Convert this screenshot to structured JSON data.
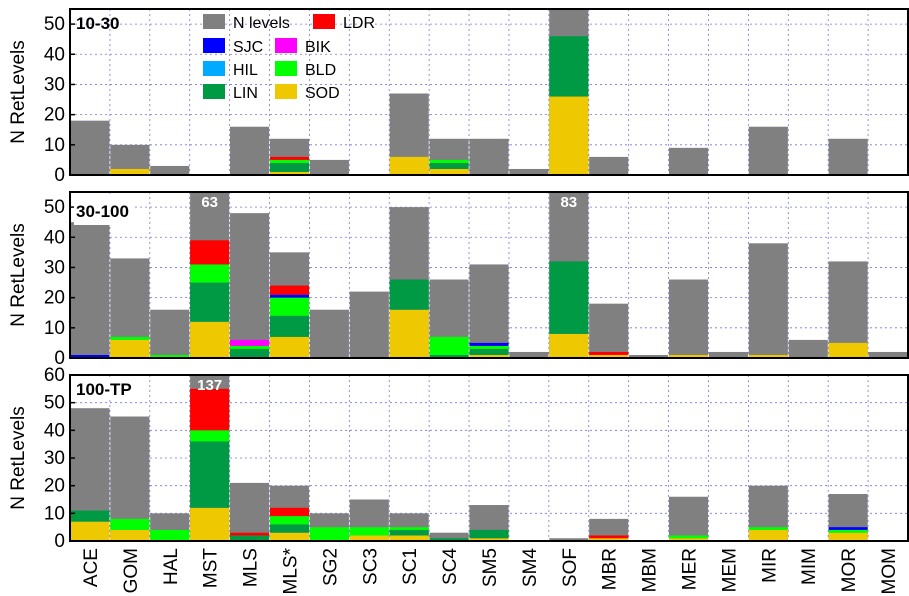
{
  "chart_data": {
    "type": "bar",
    "stacked": true,
    "ylabel": "N RetLevels",
    "categories": [
      "ACE",
      "GOM",
      "HAL",
      "MST",
      "MLS",
      "MLS*",
      "SG2",
      "SC3",
      "SC1",
      "SC4",
      "SM5",
      "SM4",
      "SOF",
      "MBR",
      "MBM",
      "MER",
      "MEM",
      "MIR",
      "MIM",
      "MOR",
      "MOM"
    ],
    "colors": {
      "N levels": "#808080",
      "LDR": "#ff0000",
      "SJC": "#0000ff",
      "BIK": "#ff00ff",
      "HIL": "#00aaff",
      "BLD": "#00ff00",
      "LIN": "#009a44",
      "SOD": "#eec800"
    },
    "legend": {
      "location": "top-left panel",
      "entries": [
        "N levels",
        "LDR",
        "SJC",
        "BIK",
        "HIL",
        "BLD",
        "LIN",
        "SOD"
      ]
    },
    "grid": true,
    "panels": [
      {
        "label": "10-30",
        "ylim": [
          0,
          55
        ],
        "yticks": [
          0,
          10,
          20,
          30,
          40,
          50
        ],
        "total": [
          18,
          10,
          3,
          0,
          16,
          12,
          5,
          0,
          27,
          12,
          12,
          2,
          55,
          6,
          0,
          9,
          0,
          16,
          0,
          12,
          0
        ],
        "segments": {
          "SOD": [
            0,
            2,
            0,
            0,
            0,
            1,
            0,
            0,
            6,
            2,
            0,
            0,
            26,
            0,
            0,
            0,
            0,
            0,
            0,
            0,
            0
          ],
          "LIN": [
            0,
            0,
            0,
            0,
            0,
            3,
            0,
            0,
            0,
            2,
            0,
            0,
            20,
            0,
            0,
            0,
            0,
            0,
            0,
            0,
            0
          ],
          "BLD": [
            0,
            0,
            0,
            0,
            0,
            1,
            0,
            0,
            0,
            1,
            0,
            0,
            0,
            0,
            0,
            0,
            0,
            0,
            0,
            0,
            0
          ],
          "HIL": [
            0,
            0,
            0,
            0,
            0,
            0,
            0,
            0,
            0,
            0,
            0,
            0,
            0,
            0,
            0,
            0,
            0,
            0,
            0,
            0,
            0
          ],
          "BIK": [
            0,
            0,
            0,
            0,
            0,
            0,
            0,
            0,
            0,
            0,
            0,
            0,
            0,
            0,
            0,
            0,
            0,
            0,
            0,
            0,
            0
          ],
          "SJC": [
            0,
            0,
            0,
            0,
            0,
            0,
            0,
            0,
            0,
            0,
            0,
            0,
            0,
            0,
            0,
            0,
            0,
            0,
            0,
            0,
            0
          ],
          "LDR": [
            0,
            0,
            0,
            0,
            0,
            1,
            0,
            0,
            0,
            0,
            0,
            0,
            0,
            0,
            0,
            0,
            0,
            0,
            0,
            0,
            0
          ]
        },
        "overflow_labels": []
      },
      {
        "label": "30-100",
        "ylim": [
          0,
          55
        ],
        "yticks": [
          0,
          10,
          20,
          30,
          40,
          50
        ],
        "total": [
          45,
          33,
          16,
          63,
          48,
          35,
          16,
          22,
          50,
          26,
          31,
          2,
          83,
          18,
          1,
          26,
          2,
          38,
          6,
          32,
          2
        ],
        "segments": {
          "SOD": [
            0,
            6,
            0,
            12,
            0,
            7,
            0,
            0,
            16,
            0,
            1,
            0,
            8,
            1,
            0,
            1,
            0,
            1,
            0,
            5,
            0
          ],
          "LIN": [
            0,
            0,
            0,
            13,
            3,
            7,
            0,
            0,
            10,
            1,
            2,
            0,
            24,
            0,
            0,
            0,
            0,
            0,
            0,
            0,
            0
          ],
          "BLD": [
            0,
            1,
            1,
            6,
            1,
            6,
            0,
            0,
            0,
            6,
            1,
            0,
            0,
            0,
            0,
            0,
            0,
            0,
            0,
            0,
            0
          ],
          "HIL": [
            0,
            0,
            0,
            0,
            0,
            0,
            0,
            0,
            0,
            0,
            0,
            0,
            0,
            0,
            0,
            0,
            0,
            0,
            0,
            0,
            0
          ],
          "BIK": [
            0,
            0,
            0,
            0,
            2,
            0,
            0,
            0,
            0,
            0,
            0,
            0,
            0,
            0,
            0,
            0,
            0,
            0,
            0,
            0,
            0
          ],
          "SJC": [
            1,
            0,
            0,
            0,
            0,
            1,
            0,
            0,
            0,
            0,
            1,
            0,
            0,
            0,
            0,
            0,
            0,
            0,
            0,
            0,
            0
          ],
          "LDR": [
            0,
            0,
            0,
            8,
            0,
            3,
            0,
            0,
            0,
            0,
            0,
            0,
            0,
            1,
            0,
            0,
            0,
            0,
            0,
            0,
            0
          ]
        },
        "overflow_labels": [
          {
            "category": "MST",
            "text": "63"
          },
          {
            "category": "SOF",
            "text": "83"
          }
        ]
      },
      {
        "label": "100-TP",
        "ylim": [
          0,
          60
        ],
        "yticks": [
          0,
          10,
          20,
          30,
          40,
          50,
          60
        ],
        "total": [
          48,
          45,
          10,
          137,
          21,
          20,
          10,
          15,
          10,
          3,
          13,
          0,
          1,
          8,
          0,
          16,
          0,
          20,
          0,
          17,
          0
        ],
        "segments": {
          "SOD": [
            7,
            4,
            0,
            12,
            0,
            3,
            0,
            2,
            2,
            0,
            1,
            0,
            0,
            1,
            0,
            1,
            0,
            4,
            0,
            3,
            0
          ],
          "LIN": [
            4,
            0,
            0,
            24,
            2,
            3,
            0,
            0,
            2,
            1,
            3,
            0,
            0,
            0,
            0,
            0,
            0,
            0,
            0,
            0,
            0
          ],
          "BLD": [
            0,
            4,
            4,
            4,
            0,
            3,
            5,
            3,
            1,
            0,
            0,
            0,
            0,
            0,
            0,
            1,
            0,
            1,
            0,
            1,
            0
          ],
          "HIL": [
            0,
            0,
            0,
            0,
            0,
            0,
            0,
            0,
            0,
            0,
            0,
            0,
            0,
            0,
            0,
            0,
            0,
            0,
            0,
            0,
            0
          ],
          "BIK": [
            0,
            0,
            0,
            0,
            0,
            0,
            0,
            0,
            0,
            0,
            0,
            0,
            0,
            0,
            0,
            0,
            0,
            0,
            0,
            0,
            0
          ],
          "SJC": [
            0,
            0,
            0,
            0,
            0,
            0,
            0,
            0,
            0,
            0,
            0,
            0,
            0,
            0,
            0,
            0,
            0,
            0,
            0,
            1,
            0
          ],
          "LDR": [
            0,
            0,
            0,
            15,
            1,
            3,
            0,
            0,
            0,
            0,
            0,
            0,
            0,
            1,
            0,
            0,
            0,
            0,
            0,
            0,
            0
          ]
        },
        "overflow_labels": [
          {
            "category": "MST",
            "text": "137"
          }
        ]
      }
    ]
  }
}
